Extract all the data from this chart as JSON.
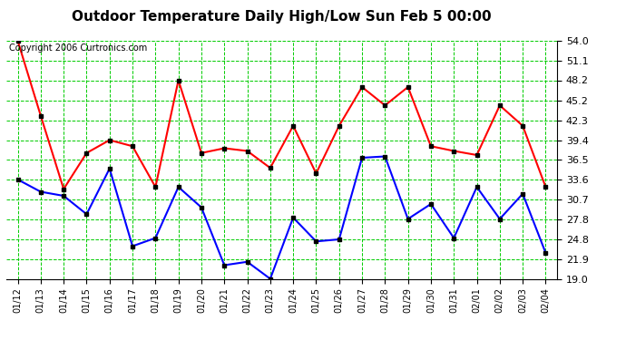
{
  "title": "Outdoor Temperature Daily High/Low Sun Feb 5 00:00",
  "copyright": "Copyright 2006 Curtronics.com",
  "x_labels": [
    "01/12",
    "01/13",
    "01/14",
    "01/15",
    "01/16",
    "01/17",
    "01/18",
    "01/19",
    "01/20",
    "01/21",
    "01/22",
    "01/23",
    "01/24",
    "01/25",
    "01/26",
    "01/27",
    "01/28",
    "01/29",
    "01/30",
    "01/31",
    "02/01",
    "02/02",
    "02/03",
    "02/04"
  ],
  "high_values": [
    54.0,
    43.0,
    32.2,
    37.5,
    39.4,
    38.5,
    32.5,
    48.2,
    37.5,
    38.2,
    37.8,
    35.3,
    41.5,
    34.5,
    41.5,
    47.2,
    44.5,
    47.2,
    38.5,
    37.8,
    37.2,
    44.5,
    41.5,
    32.5
  ],
  "low_values": [
    33.6,
    31.8,
    31.2,
    28.5,
    35.2,
    23.8,
    25.0,
    32.5,
    29.5,
    21.0,
    21.5,
    19.0,
    28.0,
    24.5,
    24.8,
    36.8,
    37.0,
    27.8,
    30.0,
    25.0,
    32.5,
    27.8,
    31.5,
    22.8
  ],
  "y_ticks": [
    19.0,
    21.9,
    24.8,
    27.8,
    30.7,
    33.6,
    36.5,
    39.4,
    42.3,
    45.2,
    48.2,
    51.1,
    54.0
  ],
  "y_min": 19.0,
  "y_max": 54.0,
  "high_color": "#ff0000",
  "low_color": "#0000ff",
  "grid_color": "#00cc00",
  "bg_color": "#ffffff",
  "title_fontsize": 11,
  "copyright_fontsize": 7,
  "tick_fontsize": 8,
  "xtick_fontsize": 7,
  "linewidth": 1.5,
  "marker_size": 3
}
